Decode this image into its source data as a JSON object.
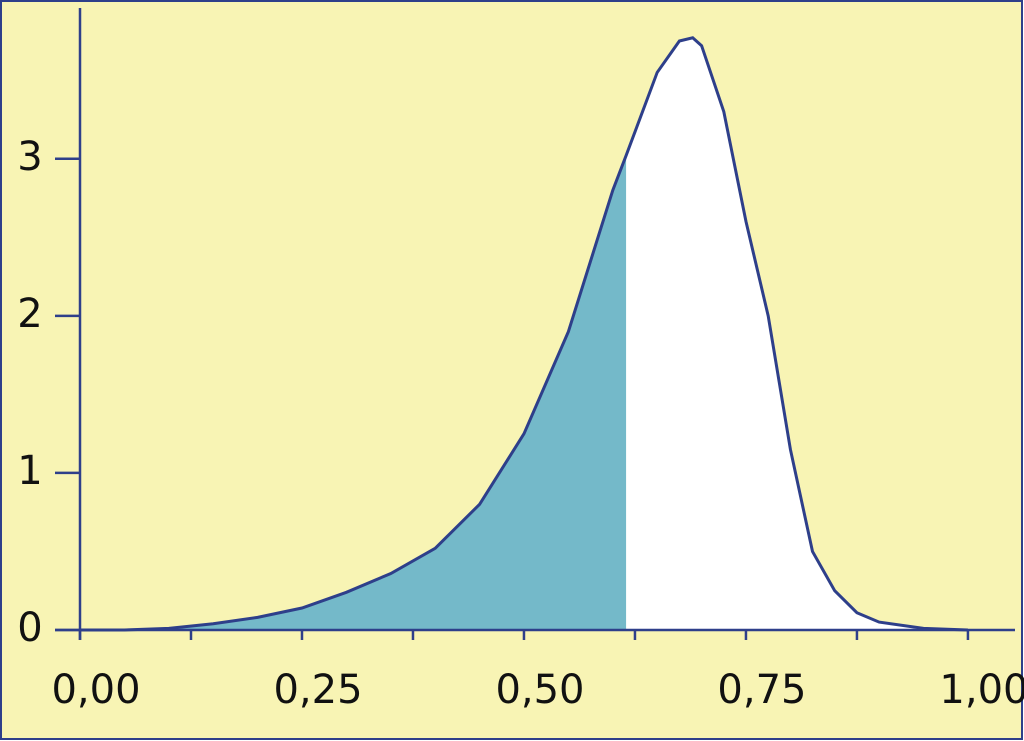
{
  "chart_data": {
    "type": "area",
    "x": [
      0,
      0.05,
      0.1,
      0.15,
      0.2,
      0.25,
      0.3,
      0.35,
      0.4,
      0.45,
      0.5,
      0.55,
      0.6,
      0.615,
      0.65,
      0.675,
      0.69,
      0.7,
      0.725,
      0.75,
      0.775,
      0.8,
      0.825,
      0.85,
      0.875,
      0.9,
      0.95,
      1.0
    ],
    "values": [
      0,
      0,
      0.01,
      0.04,
      0.08,
      0.14,
      0.24,
      0.36,
      0.52,
      0.8,
      1.25,
      1.9,
      2.8,
      3.02,
      3.55,
      3.75,
      3.77,
      3.72,
      3.3,
      2.6,
      2.0,
      1.15,
      0.5,
      0.25,
      0.11,
      0.05,
      0.01,
      0
    ],
    "shade_to": 0.615,
    "color": "#2e3f8a",
    "shade_color": "#74b9c9",
    "fill_color": "#ffffff",
    "background": "#f8f4b4",
    "xlim": [
      0,
      1.053
    ],
    "ylim": [
      0,
      3.96
    ],
    "xticks": [
      {
        "value": 0,
        "label": "0,00"
      },
      {
        "value": 0.25,
        "label": "0,25"
      },
      {
        "value": 0.5,
        "label": "0,50"
      },
      {
        "value": 0.75,
        "label": "0,75"
      },
      {
        "value": 1,
        "label": "1,00"
      }
    ],
    "xminorticks": [
      0.125,
      0.375,
      0.625,
      0.875
    ],
    "yticks": [
      0,
      1,
      2,
      3
    ]
  }
}
